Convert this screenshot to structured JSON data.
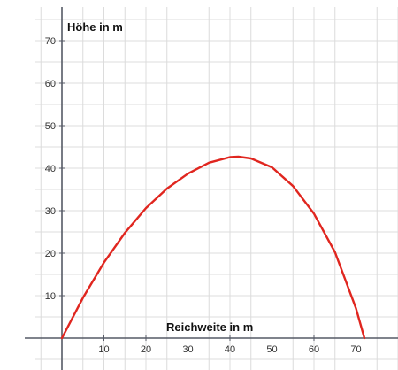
{
  "chart_data": {
    "type": "line",
    "title": "",
    "xlabel": "Reichweite in m",
    "ylabel": "Höhe in m",
    "xlim": [
      -10,
      80
    ],
    "ylim": [
      -6,
      75
    ],
    "x_ticks": [
      10,
      20,
      30,
      40,
      50,
      60,
      70
    ],
    "y_ticks": [
      10,
      20,
      30,
      40,
      50,
      60,
      70
    ],
    "grid": true,
    "series": [
      {
        "color": "#e0261f",
        "x": [
          0,
          5,
          10,
          15,
          20,
          25,
          30,
          35,
          40,
          42,
          45,
          50,
          55,
          60,
          65,
          70,
          72
        ],
        "y": [
          0,
          9.5,
          17.8,
          24.8,
          30.6,
          35.2,
          38.7,
          41.3,
          42.6,
          42.7,
          42.3,
          40.2,
          35.8,
          29.3,
          20.2,
          7.0,
          0
        ]
      }
    ]
  }
}
